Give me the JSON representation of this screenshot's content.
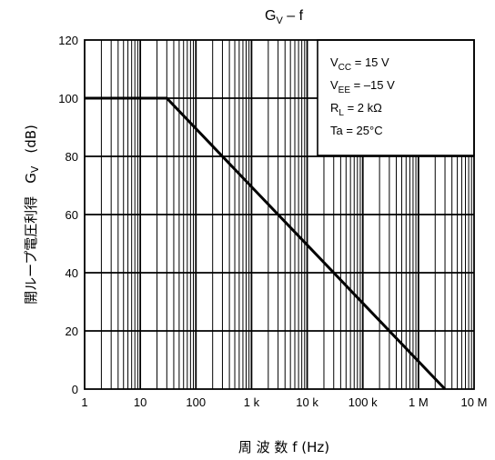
{
  "chart_data": {
    "type": "line",
    "title_main": "G",
    "title_sub": "V",
    "title_rest": " – f",
    "xlabel": "周 波 数 f (Hz)",
    "ylabel_jp": "開ループ電圧利得",
    "ylabel_sym_main": "G",
    "ylabel_sym_sub": "V",
    "ylabel_unit": "(dB)",
    "x_scale": "log",
    "xlim": [
      1,
      10000000
    ],
    "ylim": [
      0,
      120
    ],
    "x_tick_labels": [
      "1",
      "10",
      "100",
      "1 k",
      "10 k",
      "100 k",
      "1 M",
      "10 M"
    ],
    "y_tick_labels": [
      "0",
      "20",
      "40",
      "60",
      "80",
      "100",
      "120"
    ],
    "grid": true,
    "legend_position": "top-right",
    "conditions": [
      {
        "main": "V",
        "sub": "CC",
        "rest": " = 15 V"
      },
      {
        "main": "V",
        "sub": "EE",
        "rest": " = –15 V"
      },
      {
        "main": "R",
        "sub": "L",
        "rest": " = 2 kΩ"
      },
      {
        "main": "Ta",
        "sub": "",
        "rest": " = 25°C"
      }
    ],
    "series": [
      {
        "x": [
          1,
          30,
          3000000
        ],
        "y": [
          100,
          100,
          0
        ]
      }
    ]
  }
}
